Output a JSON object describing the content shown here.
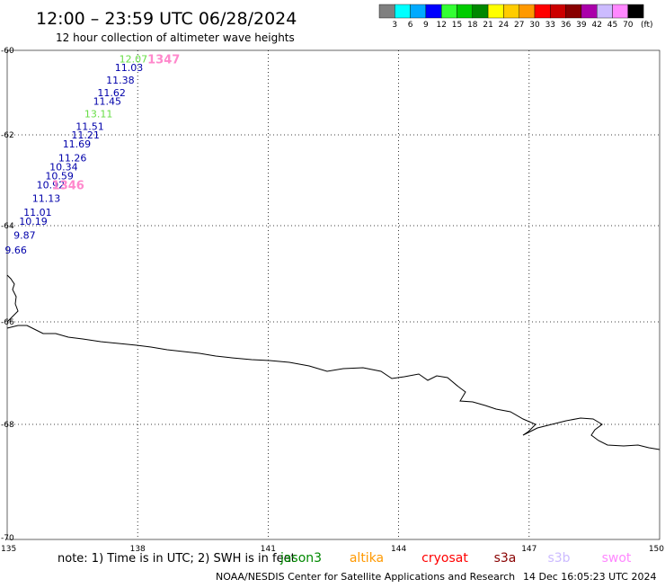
{
  "header": {
    "title": "12:00 – 23:59 UTC 06/28/2024",
    "subtitle": "12 hour collection of altimeter wave heights"
  },
  "color_scale": {
    "labels": [
      "3",
      "6",
      "9",
      "12",
      "15",
      "18",
      "21",
      "24",
      "27",
      "30",
      "33",
      "36",
      "39",
      "42",
      "45",
      "70"
    ],
    "unit": "(ft)",
    "colors": [
      "#808080",
      "#00ffff",
      "#00aaff",
      "#0000ff",
      "#33ff33",
      "#00cc00",
      "#008800",
      "#ffff00",
      "#ffcc00",
      "#ff9900",
      "#ff0000",
      "#cc0000",
      "#880000",
      "#aa00aa",
      "#ccbbff",
      "#ff88ff",
      "#000000"
    ]
  },
  "map": {
    "lon_ticks": [
      "135",
      "138",
      "141",
      "144",
      "147",
      "150"
    ],
    "lat_ticks": [
      "-60",
      "-62",
      "-64",
      "-66",
      "-68",
      "-70"
    ],
    "grid": "dotted",
    "coastline": "Antarctic coast"
  },
  "measurements": [
    {
      "value": "12.07",
      "color": "#66dd44",
      "lon": 137.9,
      "lat": -60.2
    },
    {
      "value": "11.03",
      "color": "#0000aa",
      "lon": 137.8,
      "lat": -60.4
    },
    {
      "value": "11.38",
      "color": "#0000aa",
      "lon": 137.6,
      "lat": -60.7
    },
    {
      "value": "11.62",
      "color": "#0000aa",
      "lon": 137.4,
      "lat": -61.0
    },
    {
      "value": "11.45",
      "color": "#0000aa",
      "lon": 137.3,
      "lat": -61.2
    },
    {
      "value": "13.11",
      "color": "#66dd44",
      "lon": 137.1,
      "lat": -61.5
    },
    {
      "value": "11.51",
      "color": "#0000aa",
      "lon": 136.9,
      "lat": -61.8
    },
    {
      "value": "11.21",
      "color": "#0000aa",
      "lon": 136.8,
      "lat": -62.0
    },
    {
      "value": "11.69",
      "color": "#0000aa",
      "lon": 136.6,
      "lat": -62.2
    },
    {
      "value": "11.26",
      "color": "#0000aa",
      "lon": 136.5,
      "lat": -62.5
    },
    {
      "value": "10.34",
      "color": "#0000aa",
      "lon": 136.3,
      "lat": -62.7
    },
    {
      "value": "10.59",
      "color": "#0000aa",
      "lon": 136.2,
      "lat": -62.9
    },
    {
      "value": "10.92",
      "color": "#0000aa",
      "lon": 136.0,
      "lat": -63.1
    },
    {
      "value": "11.13",
      "color": "#0000aa",
      "lon": 135.9,
      "lat": -63.4
    },
    {
      "value": "11.01",
      "color": "#0000aa",
      "lon": 135.7,
      "lat": -63.7
    },
    {
      "value": "10.19",
      "color": "#0000aa",
      "lon": 135.6,
      "lat": -63.9
    },
    {
      "value": "9.87",
      "color": "#0000aa",
      "lon": 135.4,
      "lat": -64.2
    },
    {
      "value": "9.66",
      "color": "#0000aa",
      "lon": 135.2,
      "lat": -64.5
    }
  ],
  "pass_times": [
    {
      "text": "1347",
      "color": "#ff88cc",
      "lon": 138.6,
      "lat": -60.2
    },
    {
      "text": "1346",
      "color": "#ff88cc",
      "lon": 136.4,
      "lat": -63.1
    }
  ],
  "footer": {
    "note": "note:  1) Time is in UTC;  2) SWH is in feet",
    "satellites": [
      {
        "name": "jason3",
        "color": "#008800"
      },
      {
        "name": "altika",
        "color": "#ff9900"
      },
      {
        "name": "cryosat",
        "color": "#ff0000"
      },
      {
        "name": "s3a",
        "color": "#880000"
      },
      {
        "name": "s3b",
        "color": "#ccbbff"
      },
      {
        "name": "swot",
        "color": "#ff88ff"
      }
    ],
    "credit": "NOAA/NESDIS Center for Satellite Applications and Research",
    "timestamp": "14 Dec 16:05:23 UTC 2024"
  }
}
